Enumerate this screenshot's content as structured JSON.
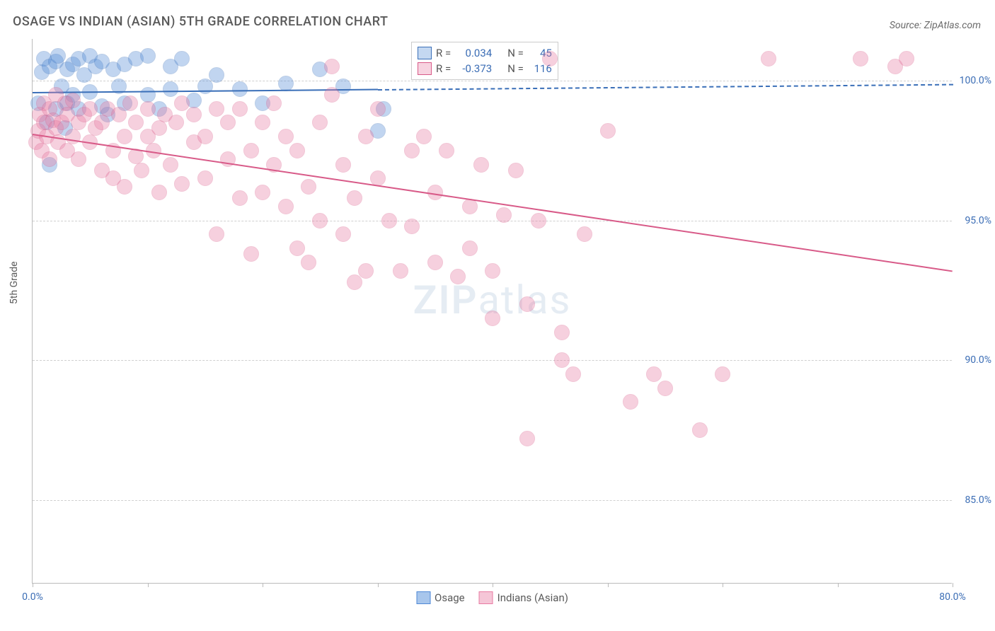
{
  "title": "OSAGE VS INDIAN (ASIAN) 5TH GRADE CORRELATION CHART",
  "source": "Source: ZipAtlas.com",
  "ylabel": "5th Grade",
  "watermark_zip": "ZIP",
  "watermark_atlas": "atlas",
  "chart": {
    "type": "scatter",
    "xlim": [
      0,
      80
    ],
    "ylim": [
      82,
      101.5
    ],
    "yticks": [
      {
        "v": 100,
        "label": "100.0%"
      },
      {
        "v": 95,
        "label": "95.0%"
      },
      {
        "v": 90,
        "label": "90.0%"
      },
      {
        "v": 85,
        "label": "85.0%"
      }
    ],
    "xticks_minor": [
      0,
      10,
      20,
      30,
      40,
      50,
      60,
      70,
      80
    ],
    "xtick_labels": [
      {
        "v": 0,
        "label": "0.0%"
      },
      {
        "v": 80,
        "label": "80.0%"
      }
    ],
    "marker_radius": 11,
    "marker_opacity": 0.35,
    "series": [
      {
        "name": "Osage",
        "color": "#4f89d6",
        "stroke": "#3a6fb8",
        "r_label": "R =",
        "r_value": "0.034",
        "n_label": "N =",
        "n_value": "45",
        "trend": {
          "x0": 0,
          "y0": 99.6,
          "x1": 80,
          "y1": 99.9,
          "dashed": true,
          "solid_until": 30
        },
        "points": [
          [
            0.5,
            99.2
          ],
          [
            0.8,
            100.3
          ],
          [
            1.0,
            100.8
          ],
          [
            1.2,
            98.5
          ],
          [
            1.5,
            100.5
          ],
          [
            1.5,
            97.0
          ],
          [
            2.0,
            100.7
          ],
          [
            2.0,
            99.0
          ],
          [
            2.2,
            100.9
          ],
          [
            2.5,
            99.8
          ],
          [
            2.8,
            98.3
          ],
          [
            3.0,
            100.4
          ],
          [
            3.0,
            99.2
          ],
          [
            3.5,
            100.6
          ],
          [
            3.5,
            99.5
          ],
          [
            4.0,
            100.8
          ],
          [
            4.0,
            99.0
          ],
          [
            4.5,
            100.2
          ],
          [
            5.0,
            100.9
          ],
          [
            5.0,
            99.6
          ],
          [
            5.5,
            100.5
          ],
          [
            6.0,
            100.7
          ],
          [
            6.0,
            99.1
          ],
          [
            6.5,
            98.8
          ],
          [
            7.0,
            100.4
          ],
          [
            7.5,
            99.8
          ],
          [
            8.0,
            100.6
          ],
          [
            8.0,
            99.2
          ],
          [
            9.0,
            100.8
          ],
          [
            10.0,
            100.9
          ],
          [
            10.0,
            99.5
          ],
          [
            11.0,
            99.0
          ],
          [
            12.0,
            99.7
          ],
          [
            12.0,
            100.5
          ],
          [
            13.0,
            100.8
          ],
          [
            14.0,
            99.3
          ],
          [
            15.0,
            99.8
          ],
          [
            16.0,
            100.2
          ],
          [
            18.0,
            99.7
          ],
          [
            20.0,
            99.2
          ],
          [
            22.0,
            99.9
          ],
          [
            25.0,
            100.4
          ],
          [
            27.0,
            99.8
          ],
          [
            30.0,
            98.2
          ],
          [
            30.5,
            99.0
          ]
        ]
      },
      {
        "name": "Indians (Asian)",
        "color": "#e87ca3",
        "stroke": "#d85a88",
        "r_label": "R =",
        "r_value": "-0.373",
        "n_label": "N =",
        "n_value": "116",
        "trend": {
          "x0": 0,
          "y0": 98.1,
          "x1": 80,
          "y1": 93.2,
          "dashed": false
        },
        "points": [
          [
            0.3,
            97.8
          ],
          [
            0.5,
            98.2
          ],
          [
            0.6,
            98.8
          ],
          [
            0.8,
            97.5
          ],
          [
            1.0,
            98.5
          ],
          [
            1.0,
            99.2
          ],
          [
            1.2,
            98.0
          ],
          [
            1.5,
            99.0
          ],
          [
            1.5,
            97.2
          ],
          [
            1.8,
            98.6
          ],
          [
            2.0,
            98.3
          ],
          [
            2.0,
            99.5
          ],
          [
            2.2,
            97.8
          ],
          [
            2.5,
            98.5
          ],
          [
            2.8,
            99.2
          ],
          [
            3.0,
            97.5
          ],
          [
            3.0,
            98.8
          ],
          [
            3.5,
            98.0
          ],
          [
            3.5,
            99.3
          ],
          [
            4.0,
            98.5
          ],
          [
            4.0,
            97.2
          ],
          [
            4.5,
            98.8
          ],
          [
            5.0,
            99.0
          ],
          [
            5.0,
            97.8
          ],
          [
            5.5,
            98.3
          ],
          [
            6.0,
            96.8
          ],
          [
            6.0,
            98.5
          ],
          [
            6.5,
            99.0
          ],
          [
            7.0,
            97.5
          ],
          [
            7.0,
            96.5
          ],
          [
            7.5,
            98.8
          ],
          [
            8.0,
            98.0
          ],
          [
            8.0,
            96.2
          ],
          [
            8.5,
            99.2
          ],
          [
            9.0,
            97.3
          ],
          [
            9.0,
            98.5
          ],
          [
            9.5,
            96.8
          ],
          [
            10.0,
            98.0
          ],
          [
            10.0,
            99.0
          ],
          [
            10.5,
            97.5
          ],
          [
            11.0,
            98.3
          ],
          [
            11.0,
            96.0
          ],
          [
            11.5,
            98.8
          ],
          [
            12.0,
            97.0
          ],
          [
            12.5,
            98.5
          ],
          [
            13.0,
            99.2
          ],
          [
            13.0,
            96.3
          ],
          [
            14.0,
            97.8
          ],
          [
            14.0,
            98.8
          ],
          [
            15.0,
            96.5
          ],
          [
            15.0,
            98.0
          ],
          [
            16.0,
            99.0
          ],
          [
            16.0,
            94.5
          ],
          [
            17.0,
            97.2
          ],
          [
            17.0,
            98.5
          ],
          [
            18.0,
            95.8
          ],
          [
            18.0,
            99.0
          ],
          [
            19.0,
            97.5
          ],
          [
            19.0,
            93.8
          ],
          [
            20.0,
            96.0
          ],
          [
            20.0,
            98.5
          ],
          [
            21.0,
            97.0
          ],
          [
            21.0,
            99.2
          ],
          [
            22.0,
            95.5
          ],
          [
            22.0,
            98.0
          ],
          [
            23.0,
            94.0
          ],
          [
            23.0,
            97.5
          ],
          [
            24.0,
            96.2
          ],
          [
            24.0,
            93.5
          ],
          [
            25.0,
            98.5
          ],
          [
            25.0,
            95.0
          ],
          [
            26.0,
            99.5
          ],
          [
            26.0,
            100.5
          ],
          [
            27.0,
            94.5
          ],
          [
            27.0,
            97.0
          ],
          [
            28.0,
            92.8
          ],
          [
            28.0,
            95.8
          ],
          [
            29.0,
            98.0
          ],
          [
            29.0,
            93.2
          ],
          [
            30.0,
            96.5
          ],
          [
            30.0,
            99.0
          ],
          [
            31.0,
            95.0
          ],
          [
            32.0,
            93.2
          ],
          [
            33.0,
            97.5
          ],
          [
            33.0,
            94.8
          ],
          [
            34.0,
            98.0
          ],
          [
            35.0,
            93.5
          ],
          [
            35.0,
            96.0
          ],
          [
            36.0,
            97.5
          ],
          [
            37.0,
            93.0
          ],
          [
            38.0,
            95.5
          ],
          [
            38.0,
            94.0
          ],
          [
            39.0,
            97.0
          ],
          [
            40.0,
            91.5
          ],
          [
            40.0,
            93.2
          ],
          [
            41.0,
            95.2
          ],
          [
            42.0,
            96.8
          ],
          [
            43.0,
            87.2
          ],
          [
            43.0,
            92.0
          ],
          [
            44.0,
            95.0
          ],
          [
            45.0,
            100.8
          ],
          [
            46.0,
            91.0
          ],
          [
            46.0,
            90.0
          ],
          [
            47.0,
            89.5
          ],
          [
            48.0,
            94.5
          ],
          [
            50.0,
            98.2
          ],
          [
            52.0,
            88.5
          ],
          [
            54.0,
            89.5
          ],
          [
            55.0,
            89.0
          ],
          [
            58.0,
            87.5
          ],
          [
            60.0,
            89.5
          ],
          [
            64.0,
            100.8
          ],
          [
            72.0,
            100.8
          ],
          [
            75.0,
            100.5
          ],
          [
            76.0,
            100.8
          ]
        ]
      }
    ]
  },
  "legend_bottom": [
    {
      "label": "Osage",
      "fill": "#a8c6ec",
      "stroke": "#4f89d6"
    },
    {
      "label": "Indians (Asian)",
      "fill": "#f5c6d7",
      "stroke": "#e87ca3"
    }
  ]
}
